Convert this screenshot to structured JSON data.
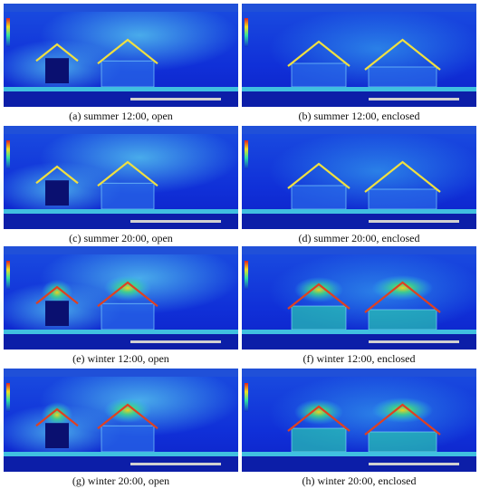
{
  "figure": {
    "panels": [
      {
        "caption": "(a) summer 12:00, open"
      },
      {
        "caption": "(b) summer 12:00, enclosed"
      },
      {
        "caption": "(c) summer 20:00, open"
      },
      {
        "caption": "(d) summer 20:00, enclosed"
      },
      {
        "caption": "(e) winter 12:00, open"
      },
      {
        "caption": "(f) winter 12:00, enclosed"
      },
      {
        "caption": "(g) winter 20:00, open"
      },
      {
        "caption": "(h) winter 20:00, enclosed"
      }
    ]
  }
}
